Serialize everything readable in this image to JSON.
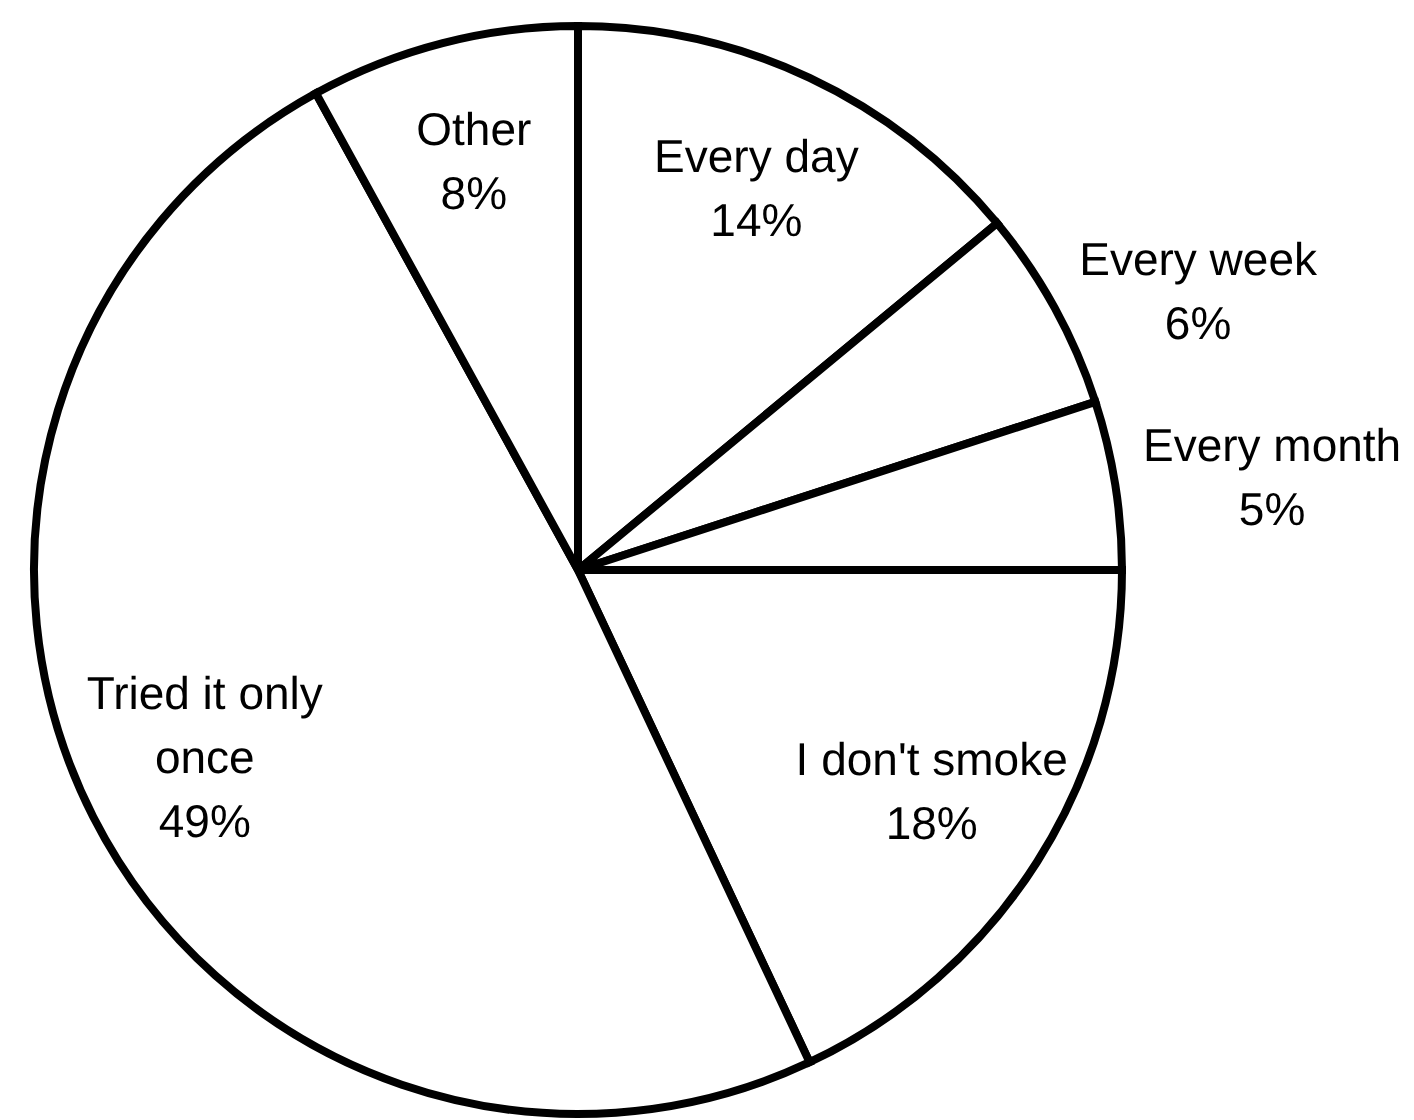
{
  "chart_data": {
    "type": "pie",
    "categories": [
      "Every day",
      "Every week",
      "Every month",
      "I don't smoke",
      "Tried it only once",
      "Other"
    ],
    "values": [
      14,
      6,
      5,
      18,
      49,
      8
    ],
    "value_labels": [
      "14%",
      "6%",
      "5%",
      "18%",
      "49%",
      "8%"
    ],
    "colors": [
      "#ffffff",
      "#ffffff",
      "#ffffff",
      "#ffffff",
      "#ffffff",
      "#ffffff"
    ]
  }
}
